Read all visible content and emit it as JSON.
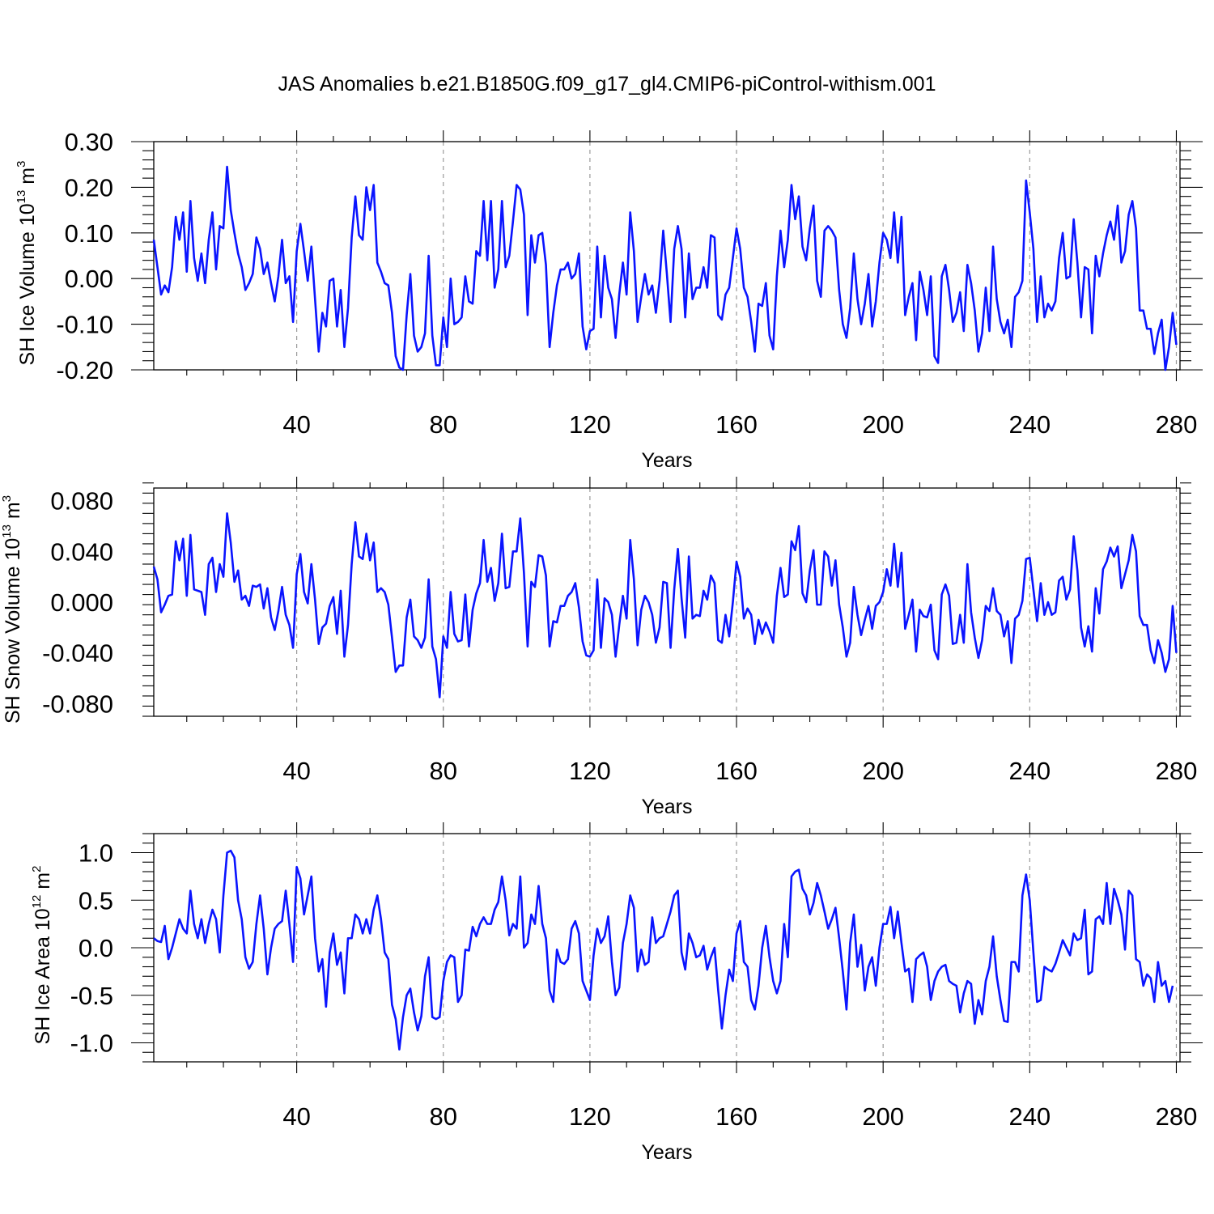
{
  "title": "JAS Anomalies b.e21.B1850G.f09_g17_gl4.CMIP6-piControl-withism.001",
  "colors": {
    "line": "#0a14ff",
    "axes": "#000000",
    "grid": "#9a9a9a"
  },
  "panels": [
    {
      "ylabel": {
        "main": "SH Ice Volume 10",
        "sup": "13",
        "tail": " m",
        "sup2": "3"
      },
      "xlabel": "Years",
      "xticks": [
        "40",
        "80",
        "120",
        "160",
        "200",
        "240",
        "280"
      ],
      "yticks": [
        "-0.20",
        "-0.10",
        "0.00",
        "0.10",
        "0.20",
        "0.30"
      ]
    },
    {
      "ylabel": {
        "main": "SH Snow Volume 10",
        "sup": "13",
        "tail": " m",
        "sup2": "3"
      },
      "xlabel": "Years",
      "xticks": [
        "40",
        "80",
        "120",
        "160",
        "200",
        "240",
        "280"
      ],
      "yticks": [
        "-0.080",
        "-0.040",
        "0.000",
        "0.040",
        "0.080"
      ]
    },
    {
      "ylabel": {
        "main": "SH Ice Area 10",
        "sup": "12",
        "tail": " m",
        "sup2": "2"
      },
      "xlabel": "Years",
      "xticks": [
        "40",
        "80",
        "120",
        "160",
        "200",
        "240",
        "280"
      ],
      "yticks": [
        "-1.0",
        "-0.5",
        "0.0",
        "0.5",
        "1.0"
      ]
    }
  ],
  "chart_data": [
    {
      "type": "line",
      "title": "JAS Anomalies b.e21.B1850G.f09_g17_gl4.CMIP6-piControl-withism.001",
      "xlabel": "Years",
      "ylabel": "SH Ice Volume 10^13 m^3",
      "xlim": [
        1,
        281
      ],
      "ylim": [
        -0.2,
        0.3
      ],
      "xticks": [
        40,
        80,
        120,
        160,
        200,
        240,
        280
      ],
      "yticks": [
        -0.2,
        -0.1,
        0.0,
        0.1,
        0.2,
        0.3
      ],
      "grid": "dashed vertical at major x ticks",
      "x_start": 1,
      "x_step": 1,
      "series": [
        {
          "values": [
            0.085,
            0.025,
            -0.035,
            -0.015,
            -0.03,
            0.025,
            0.135,
            0.085,
            0.145,
            0.015,
            0.17,
            0.045,
            -0.005,
            0.055,
            -0.01,
            0.085,
            0.145,
            0.02,
            0.115,
            0.11,
            0.245,
            0.15,
            0.1,
            0.055,
            0.025,
            -0.025,
            -0.01,
            0.01,
            0.09,
            0.065,
            0.01,
            0.035,
            -0.01,
            -0.05,
            0.005,
            0.085,
            -0.01,
            0.005,
            -0.095,
            0.06,
            0.12,
            0.06,
            -0.005,
            0.07,
            -0.045,
            -0.16,
            -0.075,
            -0.105,
            -0.005,
            0.0,
            -0.105,
            -0.025,
            -0.15,
            -0.065,
            0.09,
            0.18,
            0.095,
            0.085,
            0.2,
            0.15,
            0.205,
            0.035,
            0.015,
            -0.01,
            -0.015,
            -0.075,
            -0.17,
            -0.195,
            -0.2,
            -0.08,
            0.01,
            -0.125,
            -0.16,
            -0.15,
            -0.12,
            0.05,
            -0.125,
            -0.19,
            -0.19,
            -0.085,
            -0.15,
            0.0,
            -0.1,
            -0.095,
            -0.085,
            0.005,
            -0.05,
            -0.055,
            0.06,
            0.05,
            0.17,
            0.04,
            0.17,
            -0.02,
            0.02,
            0.17,
            0.025,
            0.05,
            0.125,
            0.205,
            0.195,
            0.14,
            -0.08,
            0.095,
            0.035,
            0.095,
            0.1,
            0.03,
            -0.15,
            -0.075,
            -0.015,
            0.02,
            0.02,
            0.035,
            0.0,
            0.01,
            0.055,
            -0.105,
            -0.155,
            -0.115,
            -0.11,
            0.07,
            -0.085,
            0.05,
            -0.02,
            -0.045,
            -0.13,
            -0.035,
            0.035,
            -0.035,
            0.145,
            0.06,
            -0.095,
            -0.04,
            0.01,
            -0.035,
            -0.015,
            -0.075,
            -0.005,
            0.105,
            0.01,
            -0.095,
            0.065,
            0.115,
            0.065,
            -0.085,
            0.055,
            -0.045,
            -0.02,
            -0.02,
            0.025,
            -0.02,
            0.095,
            0.09,
            -0.08,
            -0.09,
            -0.035,
            -0.02,
            0.045,
            0.11,
            0.065,
            -0.02,
            -0.04,
            -0.095,
            -0.16,
            -0.055,
            -0.06,
            -0.01,
            -0.125,
            -0.155,
            0.005,
            0.105,
            0.025,
            0.085,
            0.205,
            0.13,
            0.18,
            0.07,
            0.04,
            0.11,
            0.16,
            -0.005,
            -0.04,
            0.105,
            0.115,
            0.105,
            0.09,
            -0.025,
            -0.1,
            -0.13,
            -0.065,
            0.055,
            -0.045,
            -0.1,
            -0.055,
            0.01,
            -0.105,
            -0.05,
            0.035,
            0.1,
            0.085,
            0.045,
            0.145,
            0.035,
            0.135,
            -0.08,
            -0.04,
            -0.01,
            -0.135,
            0.015,
            -0.025,
            -0.08,
            0.005,
            -0.17,
            -0.185,
            0.005,
            0.03,
            -0.025,
            -0.095,
            -0.075,
            -0.03,
            -0.115,
            0.03,
            -0.01,
            -0.07,
            -0.16,
            -0.12,
            -0.02,
            -0.115,
            0.07,
            -0.045,
            -0.095,
            -0.12,
            -0.09,
            -0.15,
            -0.04,
            -0.03,
            -0.005,
            0.215,
            0.145,
            0.065,
            -0.095,
            0.005,
            -0.085,
            -0.055,
            -0.07,
            -0.05,
            0.045,
            0.1,
            0.0,
            0.005,
            0.13,
            0.035,
            -0.085,
            0.025,
            0.02,
            -0.12,
            0.05,
            0.005,
            0.055,
            0.095,
            0.125,
            0.085,
            0.16,
            0.035,
            0.06,
            0.14,
            0.17,
            0.11,
            -0.07,
            -0.07,
            -0.11,
            -0.11,
            -0.165,
            -0.12,
            -0.09,
            -0.2,
            -0.15,
            -0.075,
            -0.145
          ]
        }
      ]
    },
    {
      "type": "line",
      "xlabel": "Years",
      "ylabel": "SH Snow Volume 10^13 m^3",
      "xlim": [
        1,
        281
      ],
      "ylim": [
        -0.09,
        0.09
      ],
      "xticks": [
        40,
        80,
        120,
        160,
        200,
        240,
        280
      ],
      "yticks": [
        -0.08,
        -0.04,
        0.0,
        0.04,
        0.08
      ],
      "grid": "dashed vertical at major x ticks",
      "x_start": 1,
      "x_step": 1,
      "series": [
        {
          "values": [
            0.028,
            0.018,
            -0.008,
            -0.002,
            0.005,
            0.006,
            0.048,
            0.033,
            0.05,
            0.005,
            0.053,
            0.01,
            0.009,
            0.008,
            -0.01,
            0.03,
            0.035,
            0.008,
            0.03,
            0.02,
            0.07,
            0.047,
            0.016,
            0.025,
            0.002,
            0.005,
            -0.003,
            0.013,
            0.012,
            0.014,
            -0.005,
            0.011,
            -0.012,
            -0.022,
            -0.007,
            0.012,
            -0.01,
            -0.018,
            -0.036,
            0.022,
            0.038,
            0.008,
            -0.001,
            0.03,
            0.002,
            -0.033,
            -0.02,
            -0.017,
            -0.003,
            0.004,
            -0.025,
            0.009,
            -0.043,
            -0.018,
            0.03,
            0.063,
            0.036,
            0.034,
            0.054,
            0.033,
            0.047,
            0.008,
            0.011,
            0.008,
            -0.002,
            -0.028,
            -0.055,
            -0.05,
            -0.05,
            -0.012,
            0.002,
            -0.027,
            -0.03,
            -0.036,
            -0.028,
            0.018,
            -0.035,
            -0.045,
            -0.075,
            -0.027,
            -0.036,
            0.008,
            -0.025,
            -0.031,
            -0.03,
            0.006,
            -0.035,
            -0.006,
            0.007,
            0.015,
            0.049,
            0.016,
            0.027,
            0.001,
            0.015,
            0.054,
            0.011,
            0.012,
            0.04,
            0.04,
            0.066,
            0.023,
            -0.035,
            0.016,
            0.012,
            0.037,
            0.036,
            0.021,
            -0.035,
            -0.015,
            -0.016,
            -0.003,
            -0.003,
            0.005,
            0.008,
            0.015,
            -0.004,
            -0.031,
            -0.042,
            -0.043,
            -0.038,
            0.018,
            -0.036,
            0.003,
            0.0,
            -0.01,
            -0.043,
            -0.018,
            0.005,
            -0.013,
            0.049,
            0.018,
            -0.034,
            -0.006,
            0.005,
            0.0,
            -0.01,
            -0.032,
            -0.02,
            0.016,
            0.015,
            -0.036,
            0.01,
            0.042,
            0.003,
            -0.028,
            0.036,
            -0.013,
            -0.01,
            -0.011,
            0.009,
            0.002,
            0.021,
            0.015,
            -0.03,
            -0.032,
            -0.01,
            -0.027,
            0.0,
            0.032,
            0.02,
            -0.013,
            -0.005,
            -0.01,
            -0.033,
            -0.014,
            -0.025,
            -0.016,
            -0.023,
            -0.032,
            0.005,
            0.027,
            0.004,
            0.006,
            0.048,
            0.041,
            0.06,
            0.007,
            0.0,
            0.025,
            0.041,
            -0.002,
            -0.002,
            0.04,
            0.036,
            0.013,
            0.033,
            -0.002,
            -0.02,
            -0.043,
            -0.032,
            0.012,
            -0.01,
            -0.026,
            -0.014,
            -0.003,
            -0.021,
            -0.003,
            0.0,
            0.008,
            0.026,
            0.013,
            0.046,
            0.012,
            0.039,
            -0.021,
            -0.01,
            0.002,
            -0.039,
            -0.006,
            -0.011,
            -0.012,
            -0.002,
            -0.038,
            -0.045,
            0.006,
            0.014,
            0.005,
            -0.033,
            -0.032,
            -0.01,
            -0.032,
            0.03,
            -0.008,
            -0.028,
            -0.044,
            -0.03,
            -0.003,
            -0.007,
            0.011,
            -0.007,
            -0.01,
            -0.027,
            -0.015,
            -0.048,
            -0.013,
            -0.01,
            0.001,
            0.034,
            0.035,
            0.01,
            -0.015,
            0.015,
            -0.01,
            0.0,
            -0.01,
            -0.008,
            0.017,
            0.02,
            0.002,
            0.01,
            0.052,
            0.025,
            -0.02,
            -0.035,
            -0.019,
            -0.039,
            0.011,
            -0.009,
            0.026,
            0.032,
            0.043,
            0.036,
            0.044,
            0.011,
            0.022,
            0.033,
            0.053,
            0.04,
            -0.011,
            -0.018,
            -0.018,
            -0.038,
            -0.048,
            -0.03,
            -0.04,
            -0.055,
            -0.045,
            -0.003,
            -0.04
          ]
        }
      ]
    },
    {
      "type": "line",
      "xlabel": "Years",
      "ylabel": "SH Ice Area 10^12 m^2",
      "xlim": [
        1,
        281
      ],
      "ylim": [
        -1.2,
        1.2
      ],
      "xticks": [
        40,
        80,
        120,
        160,
        200,
        240,
        280
      ],
      "yticks": [
        -1.0,
        -0.5,
        0.0,
        0.5,
        1.0
      ],
      "grid": "dashed vertical at major x ticks",
      "x_start": 1,
      "x_step": 1,
      "series": [
        {
          "values": [
            0.1,
            0.07,
            0.06,
            0.23,
            -0.12,
            0.0,
            0.15,
            0.3,
            0.2,
            0.15,
            0.6,
            0.25,
            0.1,
            0.3,
            0.05,
            0.25,
            0.4,
            0.3,
            -0.05,
            0.55,
            1.0,
            1.02,
            0.95,
            0.5,
            0.3,
            -0.1,
            -0.22,
            -0.15,
            0.25,
            0.55,
            0.2,
            -0.28,
            0.0,
            0.2,
            0.25,
            0.28,
            0.6,
            0.25,
            -0.15,
            0.85,
            0.73,
            0.35,
            0.55,
            0.75,
            0.1,
            -0.25,
            -0.12,
            -0.62,
            -0.05,
            0.15,
            -0.18,
            -0.05,
            -0.48,
            0.1,
            0.1,
            0.35,
            0.3,
            0.15,
            0.3,
            0.15,
            0.4,
            0.55,
            0.3,
            -0.05,
            -0.12,
            -0.6,
            -0.75,
            -1.07,
            -0.73,
            -0.5,
            -0.43,
            -0.68,
            -0.87,
            -0.72,
            -0.3,
            -0.1,
            -0.73,
            -0.75,
            -0.73,
            -0.35,
            -0.15,
            -0.08,
            -0.1,
            -0.57,
            -0.5,
            -0.02,
            -0.03,
            0.22,
            0.12,
            0.25,
            0.32,
            0.25,
            0.25,
            0.4,
            0.48,
            0.75,
            0.5,
            0.13,
            0.25,
            0.2,
            0.75,
            0.0,
            0.05,
            0.35,
            0.25,
            0.65,
            0.25,
            0.1,
            -0.45,
            -0.57,
            -0.02,
            -0.15,
            -0.17,
            -0.12,
            0.2,
            0.28,
            0.15,
            -0.35,
            -0.45,
            -0.55,
            -0.08,
            0.2,
            0.05,
            0.12,
            0.33,
            -0.15,
            -0.5,
            -0.42,
            0.05,
            0.25,
            0.55,
            0.42,
            -0.25,
            -0.02,
            -0.18,
            -0.15,
            0.32,
            0.05,
            0.1,
            0.12,
            0.25,
            0.38,
            0.55,
            0.6,
            -0.05,
            -0.23,
            0.15,
            0.05,
            -0.1,
            -0.08,
            0.02,
            -0.23,
            -0.1,
            0.0,
            -0.45,
            -0.85,
            -0.5,
            -0.23,
            -0.35,
            0.15,
            0.28,
            -0.15,
            -0.2,
            -0.55,
            -0.65,
            -0.4,
            0.0,
            0.23,
            -0.1,
            -0.35,
            -0.48,
            -0.35,
            0.25,
            -0.1,
            0.75,
            0.8,
            0.82,
            0.62,
            0.55,
            0.35,
            0.47,
            0.68,
            0.55,
            0.38,
            0.2,
            0.3,
            0.42,
            0.1,
            -0.25,
            -0.65,
            0.05,
            0.35,
            -0.2,
            0.03,
            -0.45,
            -0.2,
            -0.1,
            -0.4,
            0.0,
            0.25,
            0.25,
            0.43,
            0.1,
            0.38,
            0.05,
            -0.25,
            -0.22,
            -0.57,
            -0.12,
            -0.08,
            -0.05,
            -0.2,
            -0.55,
            -0.35,
            -0.25,
            -0.2,
            -0.18,
            -0.35,
            -0.38,
            -0.4,
            -0.68,
            -0.48,
            -0.35,
            -0.38,
            -0.8,
            -0.55,
            -0.7,
            -0.35,
            -0.2,
            0.12,
            -0.3,
            -0.55,
            -0.77,
            -0.78,
            -0.15,
            -0.15,
            -0.25,
            0.55,
            0.77,
            0.5,
            -0.05,
            -0.57,
            -0.55,
            -0.2,
            -0.23,
            -0.25,
            -0.17,
            -0.05,
            0.08,
            0.0,
            -0.08,
            0.15,
            0.08,
            0.1,
            0.4,
            -0.28,
            -0.25,
            0.3,
            0.33,
            0.25,
            0.68,
            0.25,
            0.62,
            0.5,
            0.35,
            -0.02,
            0.6,
            0.55,
            -0.12,
            -0.15,
            -0.4,
            -0.28,
            -0.32,
            -0.57,
            -0.15,
            -0.4,
            -0.35,
            -0.57,
            -0.4
          ]
        }
      ]
    }
  ]
}
